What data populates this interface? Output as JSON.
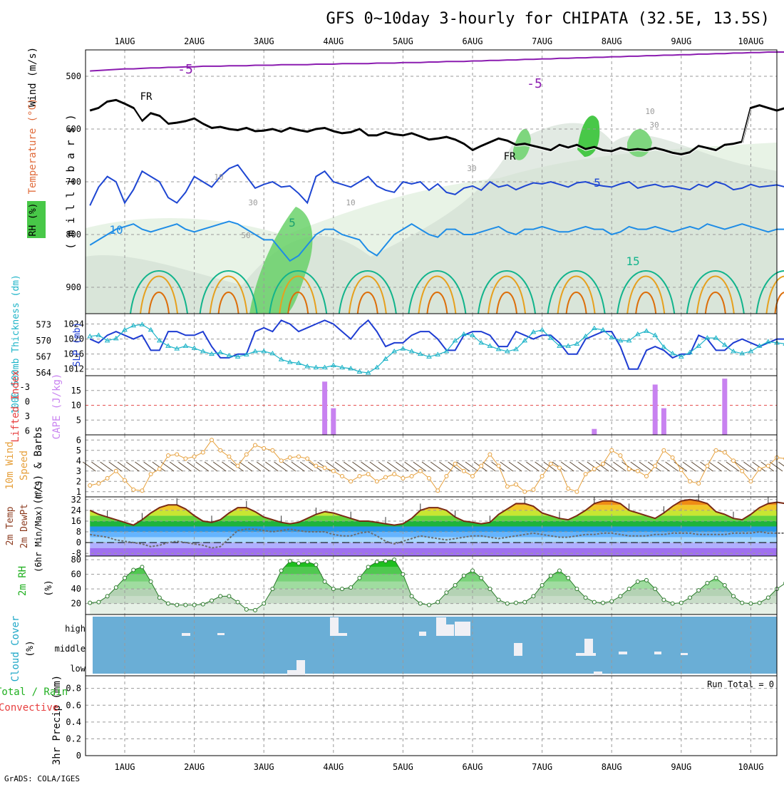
{
  "title": "GFS 0~10day 3-hourly for CHIPATA (32.5E, 13.5S)",
  "credit": "GrADS: COLA/IGES",
  "chart_data": {
    "type": "meteogram",
    "x_labels": [
      "1AUG",
      "2AUG",
      "3AUG",
      "4AUG",
      "5AUG",
      "6AUG",
      "7AUG",
      "8AUG",
      "9AUG",
      "10AUG"
    ],
    "upper": {
      "ylabel_rh": "RH (%)",
      "ylabel_t": "Temperature (°C)",
      "ylabel_w": "Wind (m/s)",
      "ylabel_p": "( m i l l i b a r s )",
      "pressure_ticks": [
        500,
        600,
        700,
        800,
        900
      ],
      "ylim": [
        450,
        950
      ],
      "contour_labels": [
        "-5",
        "-5",
        "FR",
        "FR",
        "5",
        "5",
        "10",
        "15",
        "10",
        "30",
        "50",
        "10",
        "30",
        "10",
        "30"
      ],
      "freezing_level_hpa": [
        565,
        560,
        548,
        545,
        552,
        560,
        585,
        570,
        575,
        590,
        588,
        585,
        580,
        590,
        598,
        596,
        600,
        602,
        598,
        604,
        603,
        600,
        605,
        598,
        602,
        605,
        600,
        598,
        604,
        608,
        606,
        600,
        612,
        612,
        606,
        610,
        612,
        608,
        614,
        620,
        618,
        615,
        620,
        628,
        640,
        632,
        625,
        618,
        622,
        630,
        628,
        632,
        636,
        640,
        630,
        635,
        630,
        638,
        634,
        640,
        642,
        636,
        640,
        638,
        640,
        636,
        640,
        645,
        648,
        644,
        632,
        636,
        640,
        630,
        628,
        624,
        560,
        555,
        560,
        565,
        560
      ],
      "minus5_level_hpa": [
        490,
        489,
        488,
        487,
        486,
        486,
        485,
        484,
        484,
        483,
        483,
        482,
        482,
        481,
        481,
        481,
        480,
        480,
        480,
        479,
        479,
        479,
        478,
        478,
        478,
        478,
        477,
        477,
        477,
        476,
        476,
        476,
        476,
        475,
        475,
        475,
        474,
        474,
        474,
        473,
        473,
        472,
        472,
        472,
        471,
        471,
        470,
        470,
        469,
        469,
        468,
        468,
        467,
        467,
        466,
        466,
        465,
        465,
        464,
        464,
        463,
        463,
        462,
        462,
        461,
        461,
        460,
        460,
        459,
        459,
        458,
        458,
        457,
        457,
        456,
        456,
        455,
        455,
        454,
        454,
        454
      ],
      "t5_level_hpa": [
        745,
        710,
        690,
        700,
        740,
        715,
        680,
        690,
        700,
        730,
        740,
        720,
        690,
        700,
        710,
        690,
        675,
        668,
        690,
        712,
        705,
        700,
        710,
        708,
        722,
        740,
        690,
        680,
        700,
        705,
        710,
        700,
        690,
        708,
        716,
        720,
        700,
        704,
        700,
        716,
        704,
        720,
        724,
        712,
        708,
        716,
        700,
        710,
        706,
        715,
        708,
        702,
        704,
        700,
        705,
        710,
        702,
        700,
        705,
        708,
        710,
        704,
        700,
        712,
        708,
        705,
        710,
        708,
        712,
        715,
        705,
        710,
        700,
        705,
        715,
        712,
        705,
        710,
        708,
        706,
        710
      ],
      "t10_level_hpa": [
        820,
        810,
        800,
        790,
        785,
        780,
        790,
        795,
        790,
        785,
        780,
        790,
        795,
        790,
        785,
        780,
        775,
        780,
        790,
        800,
        810,
        810,
        830,
        850,
        840,
        820,
        800,
        790,
        790,
        800,
        805,
        810,
        830,
        840,
        820,
        800,
        790,
        780,
        790,
        800,
        805,
        790,
        790,
        800,
        800,
        795,
        790,
        785,
        795,
        800,
        790,
        790,
        785,
        790,
        795,
        795,
        790,
        785,
        790,
        790,
        800,
        795,
        785,
        790,
        790,
        785,
        790,
        795,
        790,
        785,
        790,
        780,
        785,
        790,
        785,
        780,
        785,
        790,
        795,
        790,
        790
      ]
    },
    "thickness_slp": {
      "ylabel_left": "1000-500mb Thickness (dm)",
      "ylabel_right": "SLP (mb)",
      "thickness_ticks": [
        564,
        567,
        570,
        573
      ],
      "slp_ticks": [
        1012,
        1016,
        1020,
        1024
      ],
      "thickness_ylim": [
        564,
        574.5
      ],
      "slp_ylim": [
        1011,
        1026
      ],
      "slp_values": [
        1020,
        1019,
        1021,
        1022,
        1021,
        1020,
        1021,
        1017,
        1017,
        1022,
        1022,
        1021,
        1021,
        1022,
        1018,
        1015,
        1015,
        1016,
        1016,
        1022,
        1023,
        1022,
        1025,
        1024,
        1022,
        1023,
        1024,
        1025,
        1024,
        1022,
        1020,
        1023,
        1025,
        1022,
        1018,
        1019,
        1019,
        1021,
        1022,
        1022,
        1020,
        1017,
        1017,
        1021,
        1022,
        1022,
        1021,
        1018,
        1018,
        1022,
        1021,
        1020,
        1021,
        1021,
        1019,
        1016,
        1016,
        1020,
        1021,
        1022,
        1022,
        1018,
        1012,
        1012,
        1017,
        1018,
        1017,
        1015,
        1016,
        1016,
        1021,
        1020,
        1017,
        1017,
        1019,
        1020,
        1019,
        1018,
        1019,
        1020,
        1020
      ],
      "thickness_values": [
        570.8,
        571.0,
        570.0,
        570.4,
        572.0,
        572.8,
        573.0,
        572.0,
        570.0,
        569.0,
        568.5,
        569.0,
        568.6,
        568.0,
        567.5,
        567.8,
        567.2,
        567.0,
        567.4,
        568.0,
        568.0,
        567.6,
        566.5,
        566.0,
        565.8,
        565.2,
        565.0,
        565.0,
        565.4,
        565.0,
        564.8,
        564.2,
        564.0,
        565.0,
        566.6,
        568.0,
        568.5,
        568.0,
        567.5,
        567.0,
        567.4,
        568.0,
        570.0,
        571.2,
        571.0,
        569.6,
        569.0,
        568.4,
        568.0,
        568.4,
        570.0,
        571.6,
        572.0,
        570.5,
        569.0,
        569.0,
        569.4,
        570.8,
        572.3,
        572.0,
        570.6,
        570.0,
        570.0,
        571.2,
        571.8,
        571.0,
        568.8,
        567.6,
        567.0,
        567.8,
        569.0,
        570.5,
        570.5,
        569.2,
        568.0,
        567.6,
        568.0,
        569.0,
        569.8,
        569.6,
        569.4
      ]
    },
    "cape_li": {
      "ylabel_left": "Lifted Index",
      "ylabel_right": "CAPE (J/kg)",
      "li_ticks": [
        "-3",
        "0",
        "3",
        "6"
      ],
      "cape_ticks": [
        5,
        10,
        15
      ],
      "cape_ylim": [
        0,
        20
      ],
      "cape_values": [
        0,
        0,
        0,
        0,
        0,
        0,
        0,
        0,
        0,
        0,
        0,
        0,
        0,
        0,
        0,
        0,
        0,
        0,
        0,
        0,
        0,
        0,
        0,
        0,
        0,
        0,
        0,
        18,
        9,
        0,
        0,
        0,
        0,
        0,
        0,
        0,
        0,
        0,
        0,
        0,
        0,
        0,
        0,
        0,
        0,
        0,
        0,
        0,
        0,
        0,
        0,
        0,
        0,
        0,
        0,
        0,
        0,
        0,
        2,
        0,
        0,
        0,
        0,
        0,
        0,
        17,
        9,
        0,
        0,
        0,
        0,
        0,
        0,
        19,
        0,
        0,
        0,
        0,
        0,
        0,
        0
      ]
    },
    "wind10m": {
      "ylabel": "10m Wind Speed (m/s) & Barbs",
      "ticks": [
        1,
        2,
        3,
        4,
        5,
        6
      ],
      "ylim": [
        0.5,
        6.5
      ],
      "speed_values": [
        1.6,
        1.8,
        2.3,
        3.0,
        2.1,
        1.2,
        1.1,
        2.7,
        3.2,
        4.5,
        4.6,
        4.2,
        4.4,
        4.8,
        6.0,
        5.0,
        4.4,
        3.5,
        4.6,
        5.5,
        5.2,
        5.0,
        4.0,
        4.3,
        4.4,
        4.2,
        3.5,
        3.3,
        3.0,
        2.5,
        2.0,
        2.5,
        2.7,
        2.0,
        2.4,
        2.7,
        2.3,
        2.5,
        3.0,
        2.3,
        1.1,
        2.5,
        3.7,
        3.0,
        2.5,
        3.5,
        4.6,
        3.5,
        1.5,
        1.7,
        1.0,
        1.2,
        2.5,
        3.7,
        3.3,
        1.3,
        1.0,
        2.7,
        3.2,
        3.7,
        5.0,
        4.5,
        3.2,
        3.0,
        2.5,
        3.5,
        5.0,
        4.3,
        3.1,
        2.0,
        1.8,
        3.5,
        5.0,
        4.8,
        4.0,
        3.0,
        2.0,
        3.2,
        3.5,
        4.3,
        4.2
      ]
    },
    "temp2m": {
      "ylabel": "2m Temp 2m DewPt (6hr Min/Max) (°C)",
      "ticks": [
        -8,
        0,
        8,
        16,
        24,
        32
      ],
      "ylim": [
        -10,
        34
      ],
      "temp_values": [
        24,
        21,
        19,
        17,
        15,
        13,
        17,
        22,
        26,
        28,
        28,
        25,
        20,
        16,
        15,
        17,
        22,
        26,
        26,
        23,
        19,
        17,
        15,
        14,
        15,
        18,
        21,
        23,
        22,
        20,
        18,
        16,
        16,
        15,
        14,
        13,
        14,
        18,
        24,
        26,
        26,
        24,
        19,
        16,
        15,
        14,
        15,
        21,
        25,
        29,
        29,
        27,
        22,
        20,
        18,
        17,
        20,
        24,
        29,
        31,
        31,
        29,
        24,
        22,
        20,
        18,
        22,
        27,
        31,
        32,
        31,
        29,
        23,
        21,
        18,
        17,
        21,
        26,
        29,
        30,
        29
      ],
      "dewpt_values": [
        6,
        5,
        4,
        2,
        1,
        0,
        -1,
        -3,
        -2,
        0,
        1,
        0,
        -1,
        -2,
        -4,
        -3,
        3,
        9,
        10,
        10,
        9,
        8,
        9,
        10,
        9,
        8,
        8,
        8,
        6,
        5,
        5,
        7,
        8,
        5,
        1,
        -1,
        1,
        3,
        5,
        4,
        3,
        2,
        3,
        4,
        5,
        5,
        4,
        3,
        4,
        5,
        6,
        7,
        6,
        5,
        4,
        4,
        5,
        6,
        6,
        7,
        7,
        6,
        5,
        5,
        5,
        6,
        6,
        7,
        7,
        7,
        6,
        6,
        6,
        6,
        7,
        7,
        7,
        8,
        7,
        7,
        7
      ]
    },
    "rh2m": {
      "ylabel": "2m RH (%)",
      "ticks": [
        20,
        40,
        60,
        80
      ],
      "ylim": [
        5,
        85
      ],
      "values": [
        21,
        22,
        30,
        42,
        55,
        66,
        70,
        50,
        28,
        20,
        18,
        18,
        18,
        19,
        24,
        30,
        30,
        22,
        12,
        11,
        20,
        40,
        65,
        78,
        75,
        77,
        73,
        50,
        40,
        40,
        42,
        55,
        70,
        77,
        78,
        80,
        60,
        30,
        20,
        18,
        22,
        35,
        45,
        58,
        65,
        55,
        40,
        25,
        20,
        21,
        22,
        30,
        45,
        58,
        65,
        55,
        40,
        28,
        22,
        21,
        23,
        30,
        40,
        50,
        52,
        40,
        25,
        20,
        21,
        28,
        38,
        48,
        55,
        45,
        30,
        21,
        20,
        21,
        28,
        40,
        48
      ]
    },
    "cloud": {
      "ylabel": "Cloud Cover (%)",
      "levels": [
        "high",
        "middle",
        "low"
      ]
    },
    "precip": {
      "ylabel_1": "3hr Precip (mm)",
      "ylabel_2": "Total / Rain",
      "ylabel_3": "Convective",
      "ticks": [
        "0",
        "0.2",
        "0.4",
        "0.6",
        "0.8"
      ],
      "ylim": [
        0,
        0.95
      ],
      "run_total": "Run Total = 0",
      "values": []
    },
    "colors": {
      "minus5": "#8b1cb0",
      "freezing": "#000000",
      "t5": "#1e46d2",
      "t10": "#1e8ce6",
      "t15": "#12b48c",
      "t20": "#e6a01e",
      "t25": "#dc6e0a",
      "slp": "#1e3cd2",
      "thickness": "#1eb4c8",
      "cape": "#c882f0",
      "li_zero": "#e65050",
      "wind": "#e6a03c",
      "temp": "#7a2a14",
      "rh": "#3cc850",
      "cloud_bg": "#6aaed6",
      "cloud_block": "#f0f0f5"
    }
  }
}
